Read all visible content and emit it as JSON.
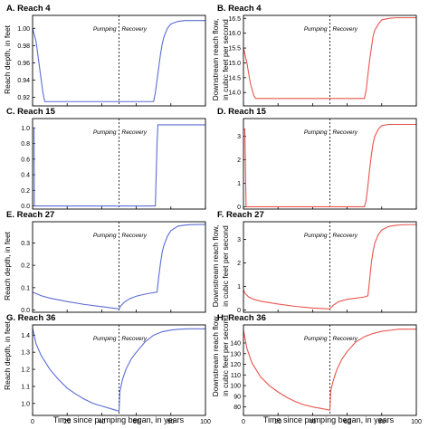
{
  "figure": {
    "xlabel": "Time since pumping began, in years",
    "left_ylabel_depth": "Reach depth, in feet",
    "right_ylabel_flow": [
      "Downstream reach flow,",
      "in cubic feet per second"
    ],
    "pumping_label": "Pumping",
    "recovery_label": "Recovery",
    "colors": {
      "depth": "#5b6cd6",
      "flow": "#e8554e"
    }
  },
  "chart_data": [
    {
      "id": "A",
      "type": "line",
      "title": "A. Reach 4",
      "ylabel": "Reach depth, in feet",
      "xlim": [
        0,
        100
      ],
      "ylim": [
        0.91,
        1.015
      ],
      "xticks": [
        0,
        20,
        40,
        60,
        80,
        100
      ],
      "xtick_labels": [
        "",
        "",
        "",
        "",
        "",
        ""
      ],
      "yticks": [
        0.92,
        0.94,
        0.96,
        0.98,
        1.0
      ],
      "ytick_labels": [
        "0.92",
        "0.94",
        "0.96",
        "0.98",
        "1.00"
      ],
      "event_x": 50,
      "series": [
        {
          "color": "#5b6cd6",
          "x": [
            0,
            2,
            4,
            6,
            7,
            10,
            20,
            40,
            49.9,
            50,
            60,
            70,
            71,
            72,
            73,
            74,
            75,
            76,
            78,
            80,
            84,
            88,
            92,
            96,
            100
          ],
          "y": [
            1.0,
            0.985,
            0.955,
            0.925,
            0.915,
            0.915,
            0.915,
            0.915,
            0.915,
            0.915,
            0.915,
            0.915,
            0.925,
            0.94,
            0.955,
            0.97,
            0.982,
            0.99,
            1.0,
            1.005,
            1.008,
            1.009,
            1.009,
            1.009,
            1.009
          ]
        }
      ]
    },
    {
      "id": "B",
      "type": "line",
      "title": "B. Reach 4",
      "ylabel": "Downstream reach flow, in cubic feet per second",
      "xlim": [
        0,
        100
      ],
      "ylim": [
        13.55,
        16.6
      ],
      "xticks": [
        0,
        20,
        40,
        60,
        80,
        100
      ],
      "xtick_labels": [
        "",
        "",
        "",
        "",
        "",
        ""
      ],
      "yticks": [
        14.0,
        14.5,
        15.0,
        15.5,
        16.0,
        16.5
      ],
      "ytick_labels": [
        "14.0",
        "14.5",
        "15.0",
        "15.5",
        "16.0",
        "16.5"
      ],
      "event_x": 50,
      "series": [
        {
          "color": "#e8554e",
          "x": [
            0,
            2,
            4,
            6,
            7,
            10,
            20,
            40,
            50,
            60,
            70,
            71,
            72,
            73,
            74,
            75,
            76,
            78,
            80,
            84,
            88,
            92,
            96,
            100
          ],
          "y": [
            15.5,
            15.0,
            14.3,
            13.9,
            13.8,
            13.8,
            13.8,
            13.8,
            13.8,
            13.8,
            13.8,
            14.1,
            14.6,
            15.1,
            15.5,
            15.9,
            16.1,
            16.3,
            16.45,
            16.5,
            16.52,
            16.52,
            16.52,
            16.52
          ]
        }
      ]
    },
    {
      "id": "C",
      "type": "line",
      "title": "C. Reach 15",
      "ylabel": "",
      "xlim": [
        0,
        100
      ],
      "ylim": [
        -0.04,
        1.12
      ],
      "xticks": [
        0,
        20,
        40,
        60,
        80,
        100
      ],
      "xtick_labels": [
        "",
        "",
        "",
        "",
        "",
        ""
      ],
      "yticks": [
        0.0,
        0.2,
        0.4,
        0.6,
        0.8,
        1.0
      ],
      "ytick_labels": [
        "0.0",
        "0.2",
        "0.4",
        "0.6",
        "0.8",
        "1.0"
      ],
      "event_x": 50,
      "series": [
        {
          "color": "#5b6cd6",
          "x": [
            0,
            0.8,
            1,
            20,
            50,
            70,
            71,
            72,
            72.5,
            73,
            80,
            100
          ],
          "y": [
            1.0,
            1.0,
            0.0,
            0.0,
            0.0,
            0.0,
            0.0,
            0.8,
            1.04,
            1.04,
            1.04,
            1.04
          ]
        }
      ]
    },
    {
      "id": "D",
      "type": "line",
      "title": "D. Reach 15",
      "ylabel": "",
      "xlim": [
        0,
        100
      ],
      "ylim": [
        -0.1,
        3.75
      ],
      "xticks": [
        0,
        20,
        40,
        60,
        80,
        100
      ],
      "xtick_labels": [
        "",
        "",
        "",
        "",
        "",
        ""
      ],
      "yticks": [
        0,
        1,
        2,
        3
      ],
      "ytick_labels": [
        "0",
        "1",
        "2",
        "3"
      ],
      "event_x": 50,
      "series": [
        {
          "color": "#e8554e",
          "x": [
            0,
            0.8,
            1.5,
            20,
            50,
            70,
            71,
            72,
            73,
            74,
            75,
            76,
            78,
            80,
            84,
            90,
            100
          ],
          "y": [
            3.3,
            3.3,
            0.0,
            0.0,
            0.0,
            0.0,
            0.3,
            0.9,
            1.6,
            2.2,
            2.7,
            3.0,
            3.3,
            3.45,
            3.5,
            3.5,
            3.5
          ]
        }
      ]
    },
    {
      "id": "E",
      "type": "line",
      "title": "E. Reach 27",
      "ylabel": "Reach depth, in feet",
      "xlim": [
        0,
        100
      ],
      "ylim": [
        -0.01,
        0.395
      ],
      "xticks": [
        0,
        20,
        40,
        60,
        80,
        100
      ],
      "xtick_labels": [
        "",
        "",
        "",
        "",
        "",
        ""
      ],
      "yticks": [
        0.0,
        0.1,
        0.2,
        0.3
      ],
      "ytick_labels": [
        "0.0",
        "0.1",
        "0.2",
        "0.3"
      ],
      "event_x": 50,
      "series": [
        {
          "color": "#5b6cd6",
          "x": [
            0,
            5,
            10,
            20,
            30,
            40,
            50,
            51,
            53,
            56,
            60,
            65,
            70,
            72,
            73,
            74,
            75,
            76,
            78,
            80,
            84,
            88,
            92,
            100
          ],
          "y": [
            0.08,
            0.064,
            0.053,
            0.038,
            0.025,
            0.015,
            0.005,
            0.018,
            0.035,
            0.05,
            0.062,
            0.071,
            0.078,
            0.08,
            0.15,
            0.21,
            0.26,
            0.29,
            0.33,
            0.355,
            0.375,
            0.38,
            0.382,
            0.383
          ]
        }
      ]
    },
    {
      "id": "F",
      "type": "line",
      "title": "F. Reach 27",
      "ylabel": "",
      "xlim": [
        0,
        100
      ],
      "ylim": [
        -0.1,
        3.75
      ],
      "xticks": [
        0,
        20,
        40,
        60,
        80,
        100
      ],
      "xtick_labels": [
        "",
        "",
        "",
        "",
        "",
        ""
      ],
      "yticks": [
        0,
        1,
        2,
        3
      ],
      "ytick_labels": [
        "0",
        "1",
        "2",
        "3"
      ],
      "event_x": 50,
      "series": [
        {
          "color": "#e8554e",
          "x": [
            0,
            1,
            3,
            6,
            10,
            20,
            30,
            40,
            50,
            52,
            55,
            60,
            65,
            70,
            72,
            73,
            74,
            75,
            76,
            78,
            80,
            84,
            88,
            92,
            100
          ],
          "y": [
            0.85,
            0.7,
            0.55,
            0.45,
            0.37,
            0.25,
            0.15,
            0.08,
            0.04,
            0.2,
            0.35,
            0.45,
            0.5,
            0.55,
            0.6,
            1.3,
            2.0,
            2.5,
            2.85,
            3.2,
            3.4,
            3.55,
            3.6,
            3.62,
            3.63
          ]
        }
      ]
    },
    {
      "id": "G",
      "type": "line",
      "title": "G. Reach 36",
      "ylabel": "Reach depth, in feet",
      "xlim": [
        0,
        100
      ],
      "ylim": [
        0.93,
        1.46
      ],
      "xticks": [
        0,
        20,
        40,
        60,
        80,
        100
      ],
      "xtick_labels": [
        "0",
        "20",
        "40",
        "60",
        "80",
        "100"
      ],
      "yticks": [
        1.0,
        1.1,
        1.2,
        1.3,
        1.4
      ],
      "ytick_labels": [
        "1.0",
        "1.1",
        "1.2",
        "1.3",
        "1.4"
      ],
      "event_x": 50,
      "series": [
        {
          "color": "#5b6cd6",
          "x": [
            0,
            2,
            5,
            10,
            15,
            20,
            25,
            30,
            35,
            40,
            45,
            50,
            50.5,
            52,
            54,
            57,
            60,
            65,
            70,
            75,
            80,
            85,
            90,
            100
          ],
          "y": [
            1.44,
            1.35,
            1.28,
            1.2,
            1.14,
            1.09,
            1.055,
            1.025,
            1.0,
            0.985,
            0.97,
            0.955,
            1.07,
            1.14,
            1.2,
            1.26,
            1.3,
            1.36,
            1.4,
            1.42,
            1.43,
            1.435,
            1.437,
            1.437
          ]
        }
      ]
    },
    {
      "id": "H",
      "type": "line",
      "title": "H. Reach 36",
      "ylabel": "",
      "xlim": [
        0,
        100
      ],
      "ylim": [
        72,
        157
      ],
      "xticks": [
        0,
        20,
        40,
        60,
        80,
        100
      ],
      "xtick_labels": [
        "0",
        "20",
        "40",
        "60",
        "80",
        "100"
      ],
      "yticks": [
        80,
        90,
        100,
        110,
        120,
        130,
        140
      ],
      "ytick_labels": [
        "80",
        "90",
        "100",
        "110",
        "120",
        "130",
        "140"
      ],
      "event_x": 50,
      "series": [
        {
          "color": "#e8554e",
          "x": [
            0,
            2,
            5,
            10,
            15,
            20,
            25,
            30,
            35,
            40,
            45,
            50,
            50.5,
            52,
            54,
            57,
            60,
            65,
            70,
            75,
            80,
            85,
            90,
            100
          ],
          "y": [
            152,
            135,
            121,
            108,
            100,
            94,
            89,
            85,
            82,
            80,
            78.5,
            77,
            95,
            105,
            115,
            125,
            132,
            141,
            146,
            149,
            151,
            152,
            153,
            153
          ]
        }
      ]
    }
  ]
}
